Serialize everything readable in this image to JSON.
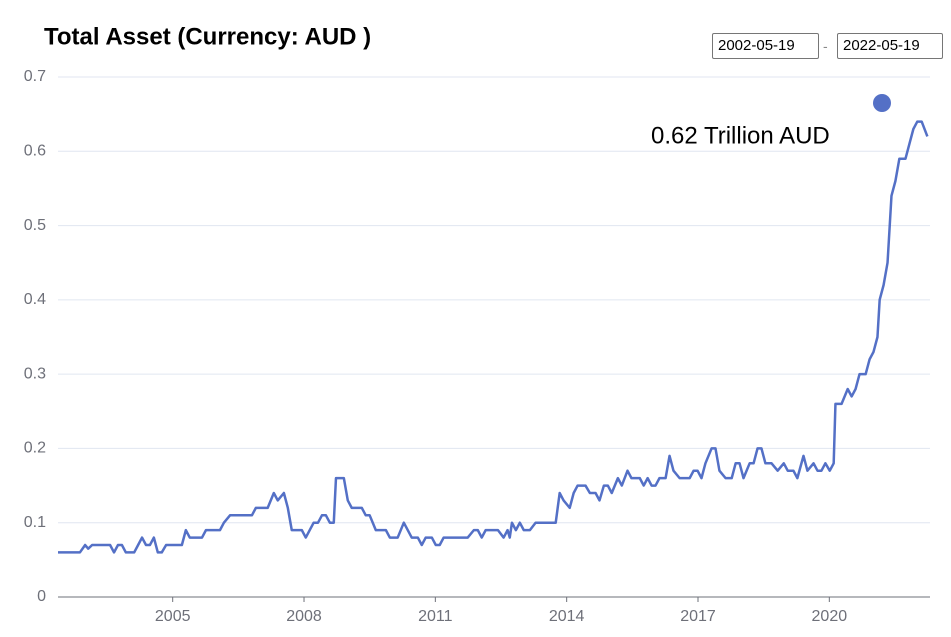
{
  "chart_data": {
    "type": "line",
    "title": "Total Asset (Currency: AUD )",
    "start_date": "2002-05-19",
    "date_separator": "-",
    "end_date": "2022-05-19",
    "annotation": "0.62 Trillion AUD",
    "color": "#5470c6",
    "grid": true,
    "xlim": [
      2002.38,
      2022.3
    ],
    "xticks": [
      2005,
      2008,
      2011,
      2014,
      2017,
      2020
    ],
    "ylim": [
      0,
      0.7
    ],
    "yticks": [
      0,
      0.1,
      0.2,
      0.3,
      0.4,
      0.5,
      0.6,
      0.7
    ],
    "x": [
      2002.38,
      2002.88,
      2003.0,
      2003.07,
      2003.16,
      2003.57,
      2003.66,
      2003.75,
      2003.84,
      2003.93,
      2004.12,
      2004.21,
      2004.3,
      2004.39,
      2004.48,
      2004.57,
      2004.66,
      2004.75,
      2004.85,
      2005.21,
      2005.3,
      2005.39,
      2005.67,
      2005.76,
      2006.08,
      2006.17,
      2006.31,
      2006.81,
      2006.9,
      2007.17,
      2007.31,
      2007.4,
      2007.54,
      2007.63,
      2007.72,
      2007.95,
      2008.04,
      2008.22,
      2008.32,
      2008.41,
      2008.5,
      2008.59,
      2008.68,
      2008.73,
      2008.91,
      2009.0,
      2009.09,
      2009.32,
      2009.41,
      2009.5,
      2009.64,
      2009.87,
      2009.96,
      2010.14,
      2010.28,
      2010.46,
      2010.6,
      2010.69,
      2010.78,
      2010.92,
      2011.01,
      2011.1,
      2011.19,
      2011.74,
      2011.88,
      2011.97,
      2012.06,
      2012.15,
      2012.43,
      2012.56,
      2012.65,
      2012.7,
      2012.75,
      2012.84,
      2012.93,
      2013.02,
      2013.16,
      2013.29,
      2013.75,
      2013.84,
      2013.93,
      2014.07,
      2014.16,
      2014.25,
      2014.43,
      2014.53,
      2014.66,
      2014.75,
      2014.85,
      2014.94,
      2015.03,
      2015.17,
      2015.26,
      2015.39,
      2015.48,
      2015.67,
      2015.76,
      2015.85,
      2015.94,
      2016.03,
      2016.12,
      2016.26,
      2016.35,
      2016.44,
      2016.58,
      2016.81,
      2016.9,
      2016.99,
      2017.08,
      2017.17,
      2017.31,
      2017.4,
      2017.49,
      2017.63,
      2017.77,
      2017.86,
      2017.95,
      2018.04,
      2018.18,
      2018.27,
      2018.36,
      2018.45,
      2018.54,
      2018.68,
      2018.82,
      2018.96,
      2019.05,
      2019.18,
      2019.27,
      2019.41,
      2019.5,
      2019.64,
      2019.73,
      2019.82,
      2019.91,
      2020.01,
      2020.1,
      2020.14,
      2020.28,
      2020.42,
      2020.51,
      2020.6,
      2020.69,
      2020.83,
      2020.92,
      2021.01,
      2021.1,
      2021.15,
      2021.24,
      2021.33,
      2021.42,
      2021.51,
      2021.6,
      2021.74,
      2021.83,
      2021.92,
      2022.01,
      2022.11,
      2022.24
    ],
    "values": [
      0.06,
      0.06,
      0.07,
      0.065,
      0.07,
      0.07,
      0.06,
      0.07,
      0.07,
      0.06,
      0.06,
      0.07,
      0.08,
      0.07,
      0.07,
      0.08,
      0.06,
      0.06,
      0.07,
      0.07,
      0.09,
      0.08,
      0.08,
      0.09,
      0.09,
      0.1,
      0.11,
      0.11,
      0.12,
      0.12,
      0.14,
      0.13,
      0.14,
      0.12,
      0.09,
      0.09,
      0.08,
      0.1,
      0.1,
      0.11,
      0.11,
      0.1,
      0.1,
      0.16,
      0.16,
      0.13,
      0.12,
      0.12,
      0.11,
      0.11,
      0.09,
      0.09,
      0.08,
      0.08,
      0.1,
      0.08,
      0.08,
      0.07,
      0.08,
      0.08,
      0.07,
      0.07,
      0.08,
      0.08,
      0.09,
      0.09,
      0.08,
      0.09,
      0.09,
      0.08,
      0.09,
      0.08,
      0.1,
      0.09,
      0.1,
      0.09,
      0.09,
      0.1,
      0.1,
      0.14,
      0.13,
      0.12,
      0.14,
      0.15,
      0.15,
      0.14,
      0.14,
      0.13,
      0.15,
      0.15,
      0.14,
      0.16,
      0.15,
      0.17,
      0.16,
      0.16,
      0.15,
      0.16,
      0.15,
      0.15,
      0.16,
      0.16,
      0.19,
      0.17,
      0.16,
      0.16,
      0.17,
      0.17,
      0.16,
      0.18,
      0.2,
      0.2,
      0.17,
      0.16,
      0.16,
      0.18,
      0.18,
      0.16,
      0.18,
      0.18,
      0.2,
      0.2,
      0.18,
      0.18,
      0.17,
      0.18,
      0.17,
      0.17,
      0.16,
      0.19,
      0.17,
      0.18,
      0.17,
      0.17,
      0.18,
      0.17,
      0.18,
      0.26,
      0.26,
      0.28,
      0.27,
      0.28,
      0.3,
      0.3,
      0.32,
      0.33,
      0.35,
      0.4,
      0.42,
      0.45,
      0.54,
      0.56,
      0.59,
      0.59,
      0.61,
      0.63,
      0.64,
      0.64,
      0.62
    ]
  }
}
